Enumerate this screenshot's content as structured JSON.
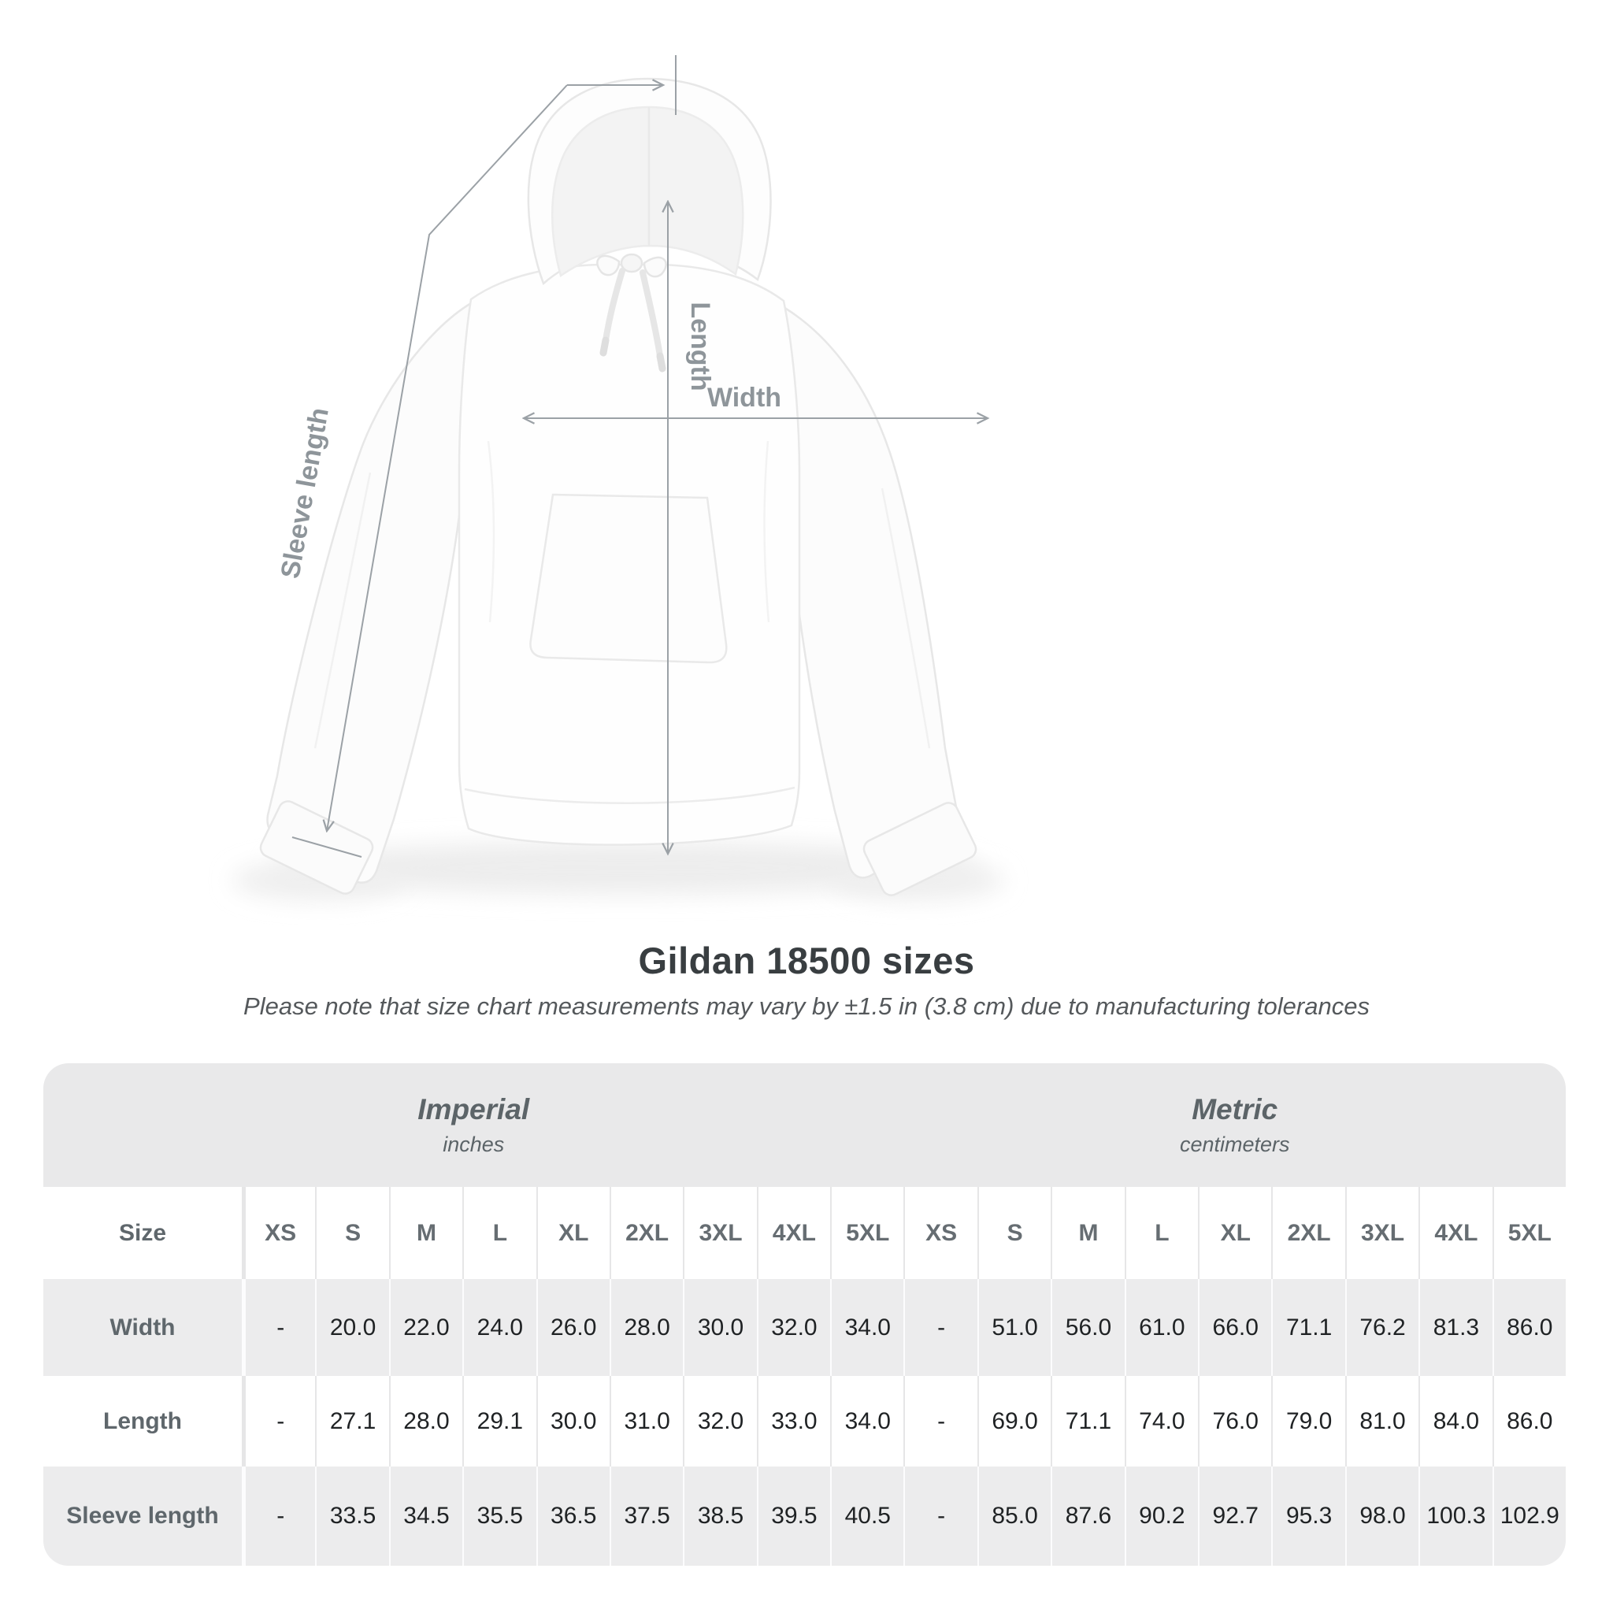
{
  "title": "Gildan 18500 sizes",
  "subtitle": "Please note that size chart measurements may vary by ±1.5 in (3.8 cm) due to manufacturing tolerances",
  "diagram": {
    "product": "white pullover hoodie",
    "labels": {
      "sleeve": "Sleeve length",
      "length": "Length",
      "width": "Width"
    }
  },
  "colors": {
    "measure_line": "#9ba1a6",
    "measure_label": "#8e959a",
    "header_band": "#e9e9ea",
    "row_stripe": "#ececed",
    "label_text": "#5f676c",
    "value_text": "#1f2224",
    "title_text": "#393e41"
  },
  "chart_data": {
    "type": "table",
    "title": "Gildan 18500 sizes",
    "subtitle": "Please note that size chart measurements may vary by ±1.5 in (3.8 cm) due to manufacturing tolerances",
    "column_groups": [
      {
        "label": "Imperial",
        "sublabel": "inches",
        "span": 9
      },
      {
        "label": "Metric",
        "sublabel": "centimeters",
        "span": 9
      }
    ],
    "columns": [
      "Size",
      "XS",
      "S",
      "M",
      "L",
      "XL",
      "2XL",
      "3XL",
      "4XL",
      "5XL",
      "XS",
      "S",
      "M",
      "L",
      "XL",
      "2XL",
      "3XL",
      "4XL",
      "5XL"
    ],
    "rows": [
      {
        "label": "Width",
        "values": [
          "-",
          "20.0",
          "22.0",
          "24.0",
          "26.0",
          "28.0",
          "30.0",
          "32.0",
          "34.0",
          "-",
          "51.0",
          "56.0",
          "61.0",
          "66.0",
          "71.1",
          "76.2",
          "81.3",
          "86.0"
        ]
      },
      {
        "label": "Length",
        "values": [
          "-",
          "27.1",
          "28.0",
          "29.1",
          "30.0",
          "31.0",
          "32.0",
          "33.0",
          "34.0",
          "-",
          "69.0",
          "71.1",
          "74.0",
          "76.0",
          "79.0",
          "81.0",
          "84.0",
          "86.0"
        ]
      },
      {
        "label": "Sleeve length",
        "values": [
          "-",
          "33.5",
          "34.5",
          "35.5",
          "36.5",
          "37.5",
          "38.5",
          "39.5",
          "40.5",
          "-",
          "85.0",
          "87.6",
          "90.2",
          "92.7",
          "95.3",
          "98.0",
          "100.3",
          "102.9"
        ]
      }
    ]
  }
}
